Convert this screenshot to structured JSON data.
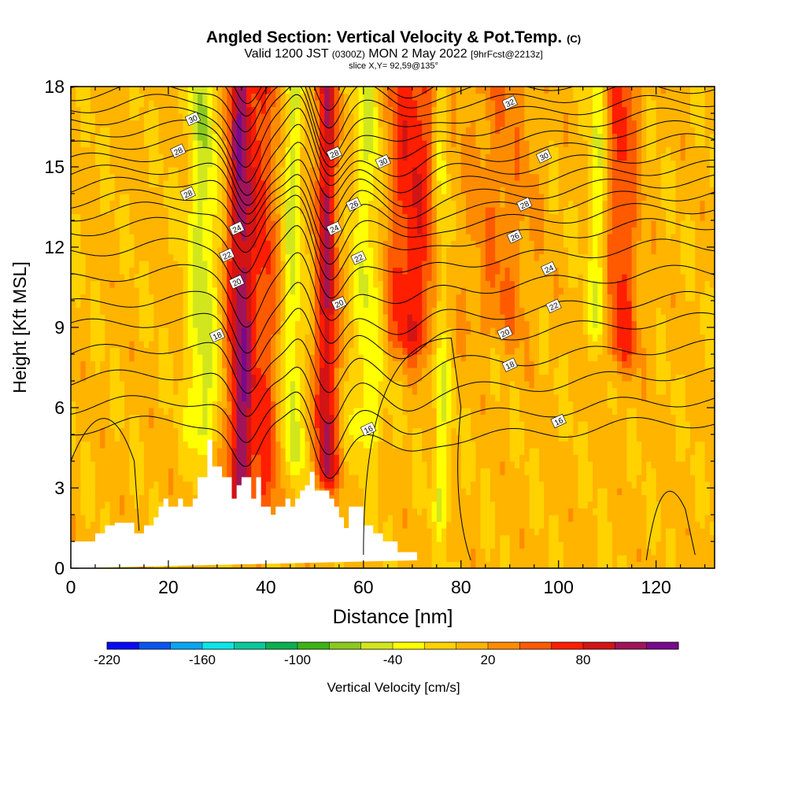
{
  "header": {
    "title": "Angled Section: Vertical Velocity & Pot.Temp.",
    "title_unit": "(C)",
    "valid_prefix": "Valid 1200 JST",
    "valid_utc": "(0300Z)",
    "valid_date": "MON 2 May 2022",
    "forecast": "[9hrFcst@2213z]",
    "slice": "slice X,Y= 92,59@135°"
  },
  "chart_data": {
    "type": "heatmap",
    "xlabel": "Distance [nm]",
    "ylabel": "Height [Kft MSL]",
    "xlim": [
      0,
      132
    ],
    "ylim": [
      0,
      18
    ],
    "x_ticks": [
      0,
      20,
      40,
      60,
      80,
      100,
      120
    ],
    "y_ticks": [
      0,
      3,
      6,
      9,
      12,
      15,
      18
    ],
    "colorbar": {
      "label": "Vertical Velocity [cm/s]",
      "min": -220,
      "step": 20,
      "tick_values": [
        -220,
        -160,
        -100,
        -40,
        20,
        80
      ],
      "colors": [
        "#0a0af5",
        "#0a55f0",
        "#0aa5f0",
        "#0ae6e6",
        "#0ac89a",
        "#0aaf50",
        "#3cb414",
        "#8cc81e",
        "#d2e61e",
        "#ffff00",
        "#ffd200",
        "#ffb400",
        "#ff8c00",
        "#ff5a00",
        "#ff1e00",
        "#d21414",
        "#a0145a",
        "#780a8c"
      ]
    },
    "velocity_features": [
      {
        "x": 35,
        "bottom": 2.6,
        "top": 18,
        "peak": 110,
        "width": 2.8
      },
      {
        "x": 40,
        "bottom": 2.3,
        "top": 18,
        "peak": 50,
        "width": 2.5
      },
      {
        "x": 52.5,
        "bottom": 3.5,
        "top": 18,
        "peak": 95,
        "width": 2.2
      },
      {
        "x": 70,
        "bottom": 8.5,
        "top": 18,
        "peak": 70,
        "width": 5.5
      },
      {
        "x": 88,
        "bottom": 9,
        "top": 18,
        "peak": 30,
        "width": 7
      },
      {
        "x": 113,
        "bottom": 8,
        "top": 18,
        "peak": 55,
        "width": 3.5
      },
      {
        "x": 27,
        "bottom": 5,
        "top": 18,
        "peak": -55,
        "width": 3
      },
      {
        "x": 45.5,
        "bottom": 4,
        "top": 18,
        "peak": -50,
        "width": 1.8
      },
      {
        "x": 61,
        "bottom": 5,
        "top": 18,
        "peak": -45,
        "width": 3
      },
      {
        "x": 76,
        "bottom": 2,
        "top": 18,
        "peak": -45,
        "width": 1.6
      },
      {
        "x": 108,
        "bottom": 9,
        "top": 18,
        "peak": -45,
        "width": 1.8
      }
    ],
    "terrain": {
      "x": [
        0,
        5,
        5,
        7,
        7,
        9,
        9,
        13,
        13,
        15,
        15,
        17,
        17,
        18,
        18,
        19,
        19,
        20,
        20,
        22,
        22,
        23,
        23,
        25,
        25,
        26,
        26,
        28,
        28,
        29,
        29,
        31,
        31,
        33,
        33,
        34,
        34,
        35,
        35,
        37,
        37,
        38,
        38,
        39,
        39,
        41,
        41,
        42,
        42,
        44,
        44,
        45,
        45,
        46,
        46,
        47,
        47,
        48,
        48,
        49,
        49,
        50,
        50,
        53,
        53,
        54,
        54,
        55,
        55,
        56,
        56,
        57,
        57,
        60,
        60,
        62,
        62,
        64,
        64,
        67,
        67,
        71,
        71,
        72,
        72,
        132
      ],
      "y": [
        1,
        1,
        1.3,
        1.3,
        1.6,
        1.6,
        1.7,
        1.7,
        1.3,
        1.3,
        1.6,
        1.6,
        1.9,
        1.9,
        2.3,
        2.3,
        2.6,
        2.6,
        2.3,
        2.3,
        2.6,
        2.6,
        2.3,
        2.3,
        2.6,
        2.6,
        3.4,
        3.4,
        4.8,
        4.8,
        3.8,
        3.8,
        3.4,
        3.4,
        2.6,
        2.6,
        3.1,
        3.1,
        3.4,
        3.4,
        2.6,
        2.6,
        3.4,
        3.4,
        2.3,
        2.3,
        2.0,
        2.0,
        2.3,
        2.3,
        2.6,
        2.6,
        2.3,
        2.3,
        2.6,
        2.6,
        2.9,
        2.9,
        3.1,
        3.1,
        3.6,
        3.6,
        2.9,
        2.9,
        2.6,
        2.6,
        2.3,
        2.3,
        1.9,
        1.9,
        1.5,
        1.5,
        2.3,
        2.3,
        1.6,
        1.6,
        1.3,
        1.3,
        1.0,
        1.0,
        0.6,
        0.6,
        0.3,
        0.3,
        0.3
      ]
    },
    "isentropes": {
      "levels": [
        15,
        16,
        17,
        18,
        19,
        20,
        21,
        22,
        23,
        24,
        25,
        26,
        27,
        28,
        29,
        30,
        31,
        32,
        33,
        34,
        35
      ],
      "base_heights": [
        5.2,
        6.0,
        7.0,
        8.0,
        9.0,
        9.8,
        10.8,
        11.8,
        12.6,
        13.2,
        13.7,
        14.2,
        14.7,
        15.2,
        15.7,
        16.2,
        16.7,
        17.2,
        17.7,
        18.2,
        18.7
      ],
      "dips": [
        {
          "x": 36,
          "depth": 1.8,
          "width": 4
        },
        {
          "x": 53,
          "depth": 1.6,
          "width": 4
        },
        {
          "x": 47,
          "depth": -0.8,
          "width": 3
        },
        {
          "x": 68,
          "depth": 0.7,
          "width": 6
        }
      ],
      "labels": [
        {
          "text": "30",
          "x": 25,
          "y": 16.8
        },
        {
          "text": "28",
          "x": 22,
          "y": 15.6
        },
        {
          "text": "28",
          "x": 24,
          "y": 14.0
        },
        {
          "text": "24",
          "x": 34,
          "y": 12.7
        },
        {
          "text": "22",
          "x": 32,
          "y": 11.7
        },
        {
          "text": "20",
          "x": 34,
          "y": 10.7
        },
        {
          "text": "18",
          "x": 30,
          "y": 8.7
        },
        {
          "text": "28",
          "x": 54,
          "y": 15.5
        },
        {
          "text": "30",
          "x": 64,
          "y": 15.2
        },
        {
          "text": "26",
          "x": 58,
          "y": 13.6
        },
        {
          "text": "24",
          "x": 54,
          "y": 12.7
        },
        {
          "text": "22",
          "x": 59,
          "y": 11.6
        },
        {
          "text": "20",
          "x": 55,
          "y": 9.9
        },
        {
          "text": "16",
          "x": 61,
          "y": 5.2
        },
        {
          "text": "32",
          "x": 90,
          "y": 17.4
        },
        {
          "text": "30",
          "x": 97,
          "y": 15.4
        },
        {
          "text": "28",
          "x": 93,
          "y": 13.6
        },
        {
          "text": "26",
          "x": 91,
          "y": 12.4
        },
        {
          "text": "24",
          "x": 98,
          "y": 11.2
        },
        {
          "text": "22",
          "x": 99,
          "y": 9.8
        },
        {
          "text": "20",
          "x": 89,
          "y": 8.8
        },
        {
          "text": "18",
          "x": 90,
          "y": 7.6
        },
        {
          "text": "16",
          "x": 100,
          "y": 5.5
        }
      ]
    }
  }
}
